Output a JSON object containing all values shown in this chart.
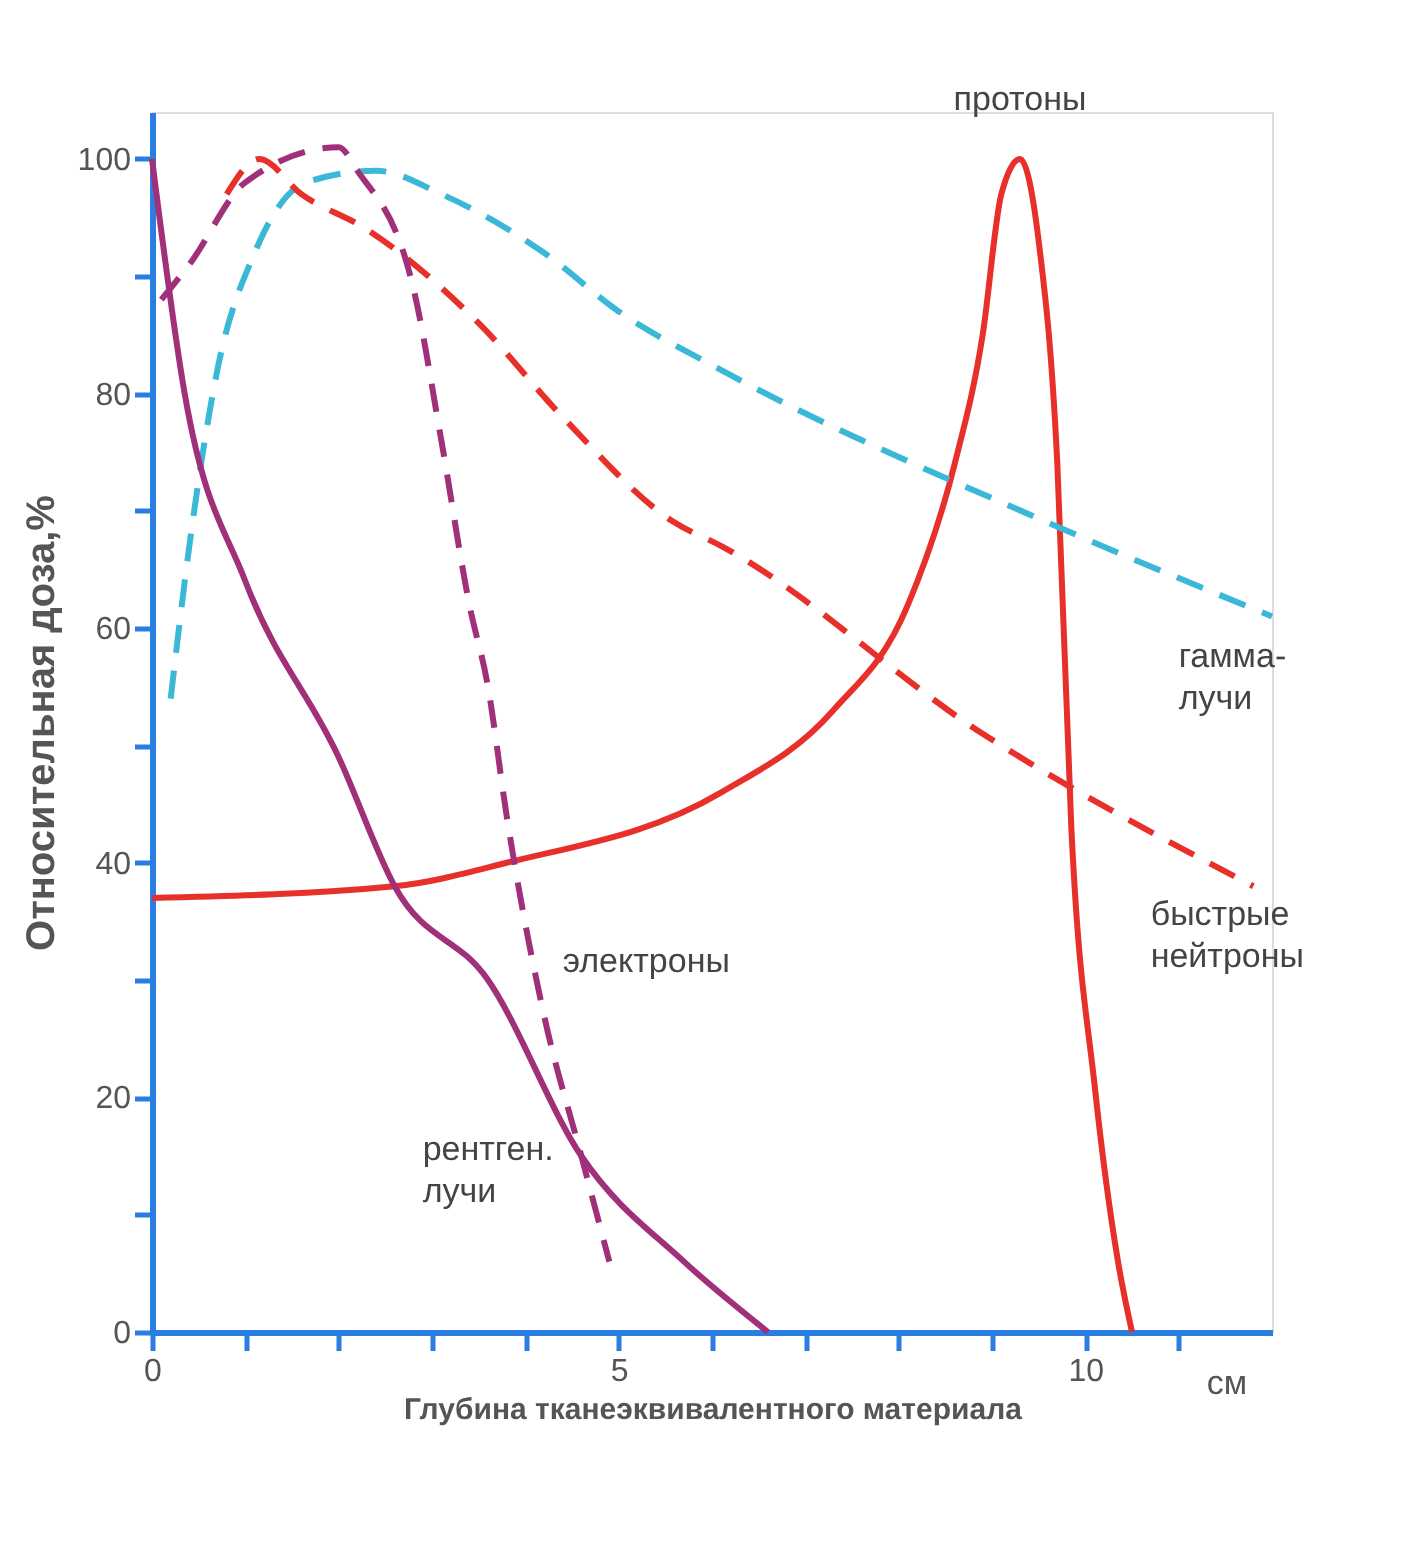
{
  "chart_data": {
    "type": "line",
    "xlabel": "Глубина тканеэквивалентного материала",
    "ylabel": "Относительная доза,%",
    "xlim": [
      0,
      12
    ],
    "ylim": [
      0,
      104
    ],
    "xticks": [
      0,
      {
        "value": 1,
        "label": null
      },
      {
        "value": 2,
        "label": null
      },
      {
        "value": 3,
        "label": null
      },
      {
        "value": 4,
        "label": null
      },
      5,
      {
        "value": 6,
        "label": null
      },
      {
        "value": 7,
        "label": null
      },
      {
        "value": 8,
        "label": null
      },
      {
        "value": 9,
        "label": null
      },
      10,
      {
        "value": 11,
        "label": null
      }
    ],
    "yticks": [
      0,
      {
        "value": 10,
        "label": null
      },
      20,
      {
        "value": 30,
        "label": null
      },
      40,
      {
        "value": 50,
        "label": null
      },
      60,
      {
        "value": 70,
        "label": null
      },
      80,
      {
        "value": 90,
        "label": null
      },
      100
    ],
    "grid": false,
    "legend": false,
    "marker": "none",
    "annotations": [
      "см"
    ],
    "series": [
      {
        "name": "протоны",
        "color": "#e8302a",
        "line_style": "solid",
        "x": [
          0,
          2.6,
          3.8,
          6.1,
          7.3,
          8.1,
          8.6,
          8.9,
          9.1,
          9.3,
          9.5,
          9.7,
          9.85,
          10.1,
          10.35,
          10.5
        ],
        "values": [
          37,
          38,
          40,
          46,
          53,
          62,
          74,
          85,
          97,
          100,
          93,
          74,
          43,
          21,
          6,
          0
        ]
      },
      {
        "name": "гамма- лучи",
        "color": "#3bb8d8",
        "line_style": "dashed",
        "x": [
          0.2,
          0.4,
          0.7,
          1.1,
          1.65,
          2.4,
          3.1,
          4.2,
          5.0,
          6.1,
          9.6,
          12.0
        ],
        "values": [
          54,
          67,
          82,
          92,
          98,
          99,
          97,
          92,
          87,
          82,
          69,
          61
        ]
      },
      {
        "name": "быстрые нейтроны",
        "color": "#e8302a",
        "line_style": "dashed",
        "x": [
          0.8,
          1.15,
          1.6,
          2.3,
          3.5,
          4.4,
          5.6,
          6.1,
          8.9,
          11.8
        ],
        "values": [
          97,
          100,
          97,
          94,
          86,
          78,
          69,
          67,
          51,
          38
        ]
      },
      {
        "name": "электроны",
        "color": "#a0307a",
        "line_style": "dashed",
        "x": [
          0.1,
          0.4,
          1.0,
          2.0,
          2.2,
          2.8,
          3.1,
          3.4,
          3.6,
          3.8,
          4.2,
          4.6,
          4.9
        ],
        "values": [
          88,
          91,
          98,
          101,
          99,
          89,
          76,
          62,
          55,
          44,
          27,
          15,
          6
        ]
      },
      {
        "name": "рентген. лучи",
        "color": "#a0307a",
        "line_style": "solid",
        "x": [
          0,
          0.35,
          1.0,
          2.0,
          2.6,
          3.6,
          4.6,
          5.7,
          6.6
        ],
        "values": [
          100,
          80,
          64,
          49,
          38,
          30,
          15,
          6,
          0
        ]
      }
    ]
  }
}
